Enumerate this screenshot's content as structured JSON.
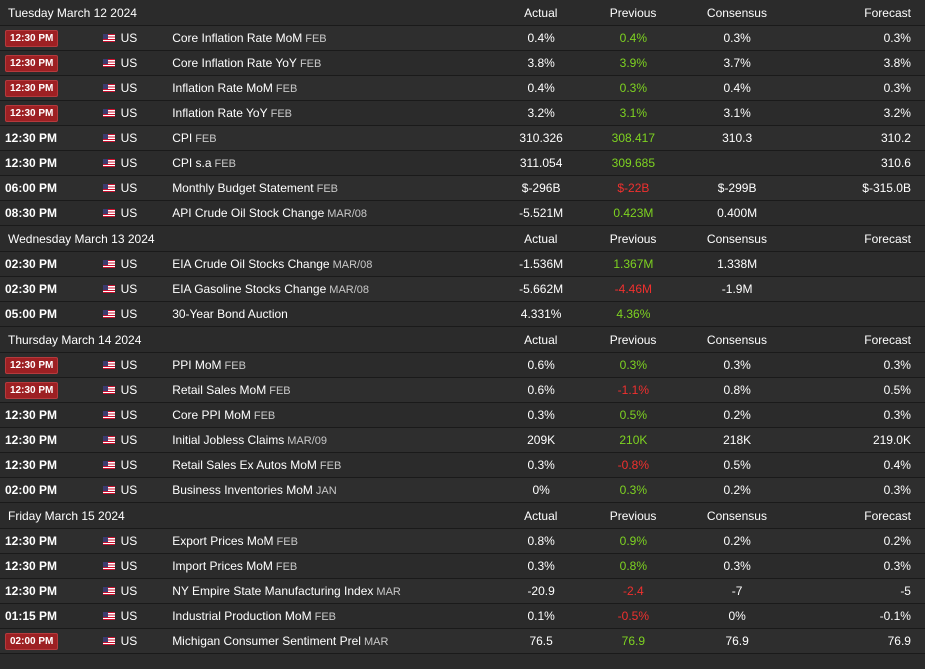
{
  "column_labels": {
    "actual": "Actual",
    "previous": "Previous",
    "consensus": "Consensus",
    "forecast": "Forecast"
  },
  "days": [
    {
      "date": "Tuesday March 12 2024",
      "events": [
        {
          "time": "12:30 PM",
          "badge": true,
          "country": "US",
          "event": "Core Inflation Rate MoM",
          "ref": "FEB",
          "actual": "0.4%",
          "previous": "0.4%",
          "prev_status": "green",
          "consensus": "0.3%",
          "forecast": "0.3%"
        },
        {
          "time": "12:30 PM",
          "badge": true,
          "country": "US",
          "event": "Core Inflation Rate YoY",
          "ref": "FEB",
          "actual": "3.8%",
          "previous": "3.9%",
          "prev_status": "green",
          "consensus": "3.7%",
          "forecast": "3.8%"
        },
        {
          "time": "12:30 PM",
          "badge": true,
          "country": "US",
          "event": "Inflation Rate MoM",
          "ref": "FEB",
          "actual": "0.4%",
          "previous": "0.3%",
          "prev_status": "green",
          "consensus": "0.4%",
          "forecast": "0.3%"
        },
        {
          "time": "12:30 PM",
          "badge": true,
          "country": "US",
          "event": "Inflation Rate YoY",
          "ref": "FEB",
          "actual": "3.2%",
          "previous": "3.1%",
          "prev_status": "green",
          "consensus": "3.1%",
          "forecast": "3.2%"
        },
        {
          "time": "12:30 PM",
          "badge": false,
          "country": "US",
          "event": "CPI",
          "ref": "FEB",
          "actual": "310.326",
          "previous": "308.417",
          "prev_status": "green",
          "consensus": "310.3",
          "forecast": "310.2"
        },
        {
          "time": "12:30 PM",
          "badge": false,
          "country": "US",
          "event": "CPI s.a",
          "ref": "FEB",
          "actual": "311.054",
          "previous": "309.685",
          "prev_status": "green",
          "consensus": "",
          "forecast": "310.6"
        },
        {
          "time": "06:00 PM",
          "badge": false,
          "country": "US",
          "event": "Monthly Budget Statement",
          "ref": "FEB",
          "actual": "$-296B",
          "previous": "$-22B",
          "prev_status": "red",
          "consensus": "$-299B",
          "forecast": "$-315.0B"
        },
        {
          "time": "08:30 PM",
          "badge": false,
          "country": "US",
          "event": "API Crude Oil Stock Change",
          "ref": "MAR/08",
          "actual": "-5.521M",
          "previous": "0.423M",
          "prev_status": "green",
          "consensus": "0.400M",
          "forecast": ""
        }
      ]
    },
    {
      "date": "Wednesday March 13 2024",
      "events": [
        {
          "time": "02:30 PM",
          "badge": false,
          "country": "US",
          "event": "EIA Crude Oil Stocks Change",
          "ref": "MAR/08",
          "actual": "-1.536M",
          "previous": "1.367M",
          "prev_status": "green",
          "consensus": "1.338M",
          "forecast": ""
        },
        {
          "time": "02:30 PM",
          "badge": false,
          "country": "US",
          "event": "EIA Gasoline Stocks Change",
          "ref": "MAR/08",
          "actual": "-5.662M",
          "previous": "-4.46M",
          "prev_status": "red",
          "consensus": "-1.9M",
          "forecast": ""
        },
        {
          "time": "05:00 PM",
          "badge": false,
          "country": "US",
          "event": "30-Year Bond Auction",
          "ref": "",
          "actual": "4.331%",
          "previous": "4.36%",
          "prev_status": "green",
          "consensus": "",
          "forecast": ""
        }
      ]
    },
    {
      "date": "Thursday March 14 2024",
      "events": [
        {
          "time": "12:30 PM",
          "badge": true,
          "country": "US",
          "event": "PPI MoM",
          "ref": "FEB",
          "actual": "0.6%",
          "previous": "0.3%",
          "prev_status": "green",
          "consensus": "0.3%",
          "forecast": "0.3%"
        },
        {
          "time": "12:30 PM",
          "badge": true,
          "country": "US",
          "event": "Retail Sales MoM",
          "ref": "FEB",
          "actual": "0.6%",
          "previous": "-1.1%",
          "prev_status": "red",
          "consensus": "0.8%",
          "forecast": "0.5%"
        },
        {
          "time": "12:30 PM",
          "badge": false,
          "country": "US",
          "event": "Core PPI MoM",
          "ref": "FEB",
          "actual": "0.3%",
          "previous": "0.5%",
          "prev_status": "green",
          "consensus": "0.2%",
          "forecast": "0.3%"
        },
        {
          "time": "12:30 PM",
          "badge": false,
          "country": "US",
          "event": "Initial Jobless Claims",
          "ref": "MAR/09",
          "actual": "209K",
          "previous": "210K",
          "prev_status": "green",
          "consensus": "218K",
          "forecast": "219.0K"
        },
        {
          "time": "12:30 PM",
          "badge": false,
          "country": "US",
          "event": "Retail Sales Ex Autos MoM",
          "ref": "FEB",
          "actual": "0.3%",
          "previous": "-0.8%",
          "prev_status": "red",
          "consensus": "0.5%",
          "forecast": "0.4%"
        },
        {
          "time": "02:00 PM",
          "badge": false,
          "country": "US",
          "event": "Business Inventories MoM",
          "ref": "JAN",
          "actual": "0%",
          "previous": "0.3%",
          "prev_status": "green",
          "consensus": "0.2%",
          "forecast": "0.3%"
        }
      ]
    },
    {
      "date": "Friday March 15 2024",
      "events": [
        {
          "time": "12:30 PM",
          "badge": false,
          "country": "US",
          "event": "Export Prices MoM",
          "ref": "FEB",
          "actual": "0.8%",
          "previous": "0.9%",
          "prev_status": "green",
          "consensus": "0.2%",
          "forecast": "0.2%"
        },
        {
          "time": "12:30 PM",
          "badge": false,
          "country": "US",
          "event": "Import Prices MoM",
          "ref": "FEB",
          "actual": "0.3%",
          "previous": "0.8%",
          "prev_status": "green",
          "consensus": "0.3%",
          "forecast": "0.3%"
        },
        {
          "time": "12:30 PM",
          "badge": false,
          "country": "US",
          "event": "NY Empire State Manufacturing Index",
          "ref": "MAR",
          "actual": "-20.9",
          "previous": "-2.4",
          "prev_status": "red",
          "consensus": "-7",
          "forecast": "-5"
        },
        {
          "time": "01:15 PM",
          "badge": false,
          "country": "US",
          "event": "Industrial Production MoM",
          "ref": "FEB",
          "actual": "0.1%",
          "previous": "-0.5%",
          "prev_status": "red",
          "consensus": "0%",
          "forecast": "-0.1%"
        },
        {
          "time": "02:00 PM",
          "badge": true,
          "country": "US",
          "event": "Michigan Consumer Sentiment Prel",
          "ref": "MAR",
          "actual": "76.5",
          "previous": "76.9",
          "prev_status": "green",
          "consensus": "76.9",
          "forecast": "76.9"
        }
      ]
    }
  ],
  "colors": {
    "green": "#7ed321",
    "red": "#f0302e",
    "badge": "#9d2023",
    "background": "#2b2b2b"
  }
}
